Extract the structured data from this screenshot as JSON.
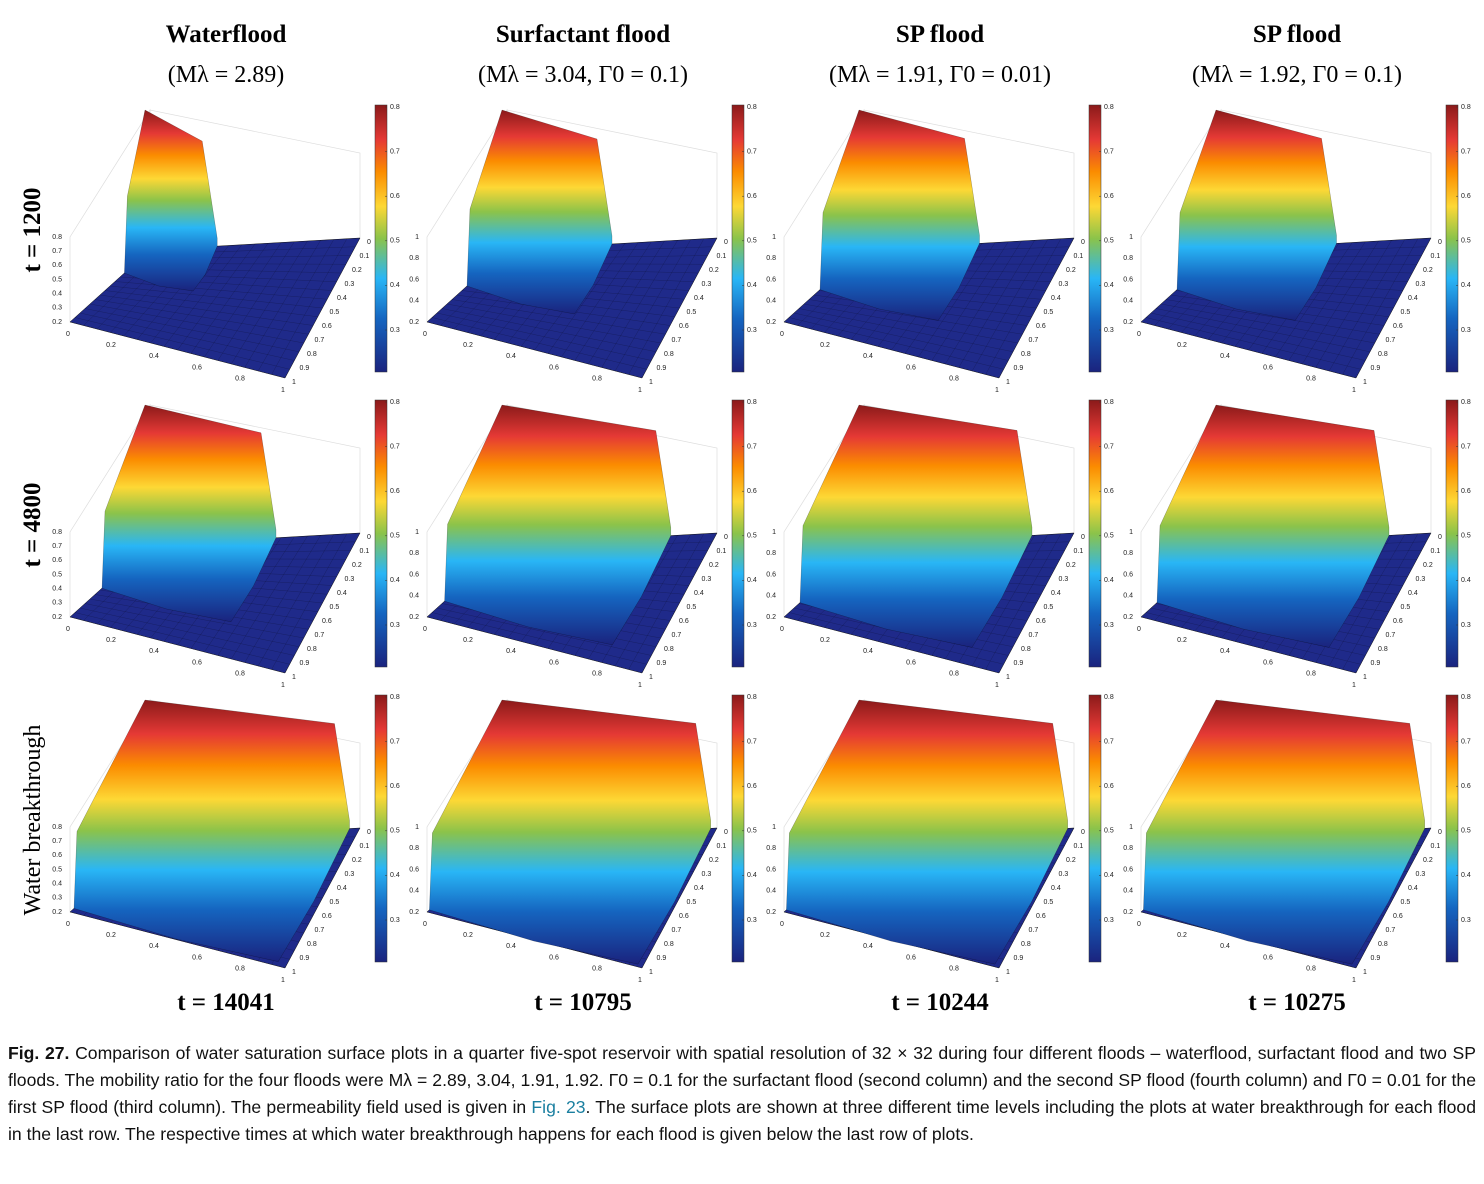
{
  "columns": [
    {
      "title": "Waterflood",
      "subtitle": "(Mλ = 2.89)"
    },
    {
      "title": "Surfactant flood",
      "subtitle": "(Mλ = 3.04, Γ0 = 0.1)"
    },
    {
      "title": "SP flood",
      "subtitle": "(Mλ = 1.91, Γ0 = 0.01)"
    },
    {
      "title": "SP flood",
      "subtitle": "(Mλ = 1.92, Γ0 = 0.1)"
    }
  ],
  "rows": [
    {
      "label": "t = 1200"
    },
    {
      "label": "t = 4800"
    },
    {
      "label": "Water breakthrough"
    }
  ],
  "breakthrough_times": [
    "t = 14041",
    "t = 10795",
    "t = 10244",
    "t = 10275"
  ],
  "axes": {
    "x_ticks": [
      0,
      0.2,
      0.4,
      0.6,
      0.8,
      1
    ],
    "y_ticks": [
      0,
      0.1,
      0.2,
      0.3,
      0.4,
      0.5,
      0.6,
      0.7,
      0.8,
      0.9,
      1
    ],
    "colorbar_ticks": [
      0.3,
      0.4,
      0.5,
      0.6,
      0.7,
      0.8
    ]
  },
  "panels": [
    [
      {
        "z_ticks": [
          0.2,
          0.3,
          0.4,
          0.5,
          0.6,
          0.7,
          0.8
        ]
      },
      {
        "z_ticks": [
          0.2,
          0.4,
          0.6,
          0.8,
          1
        ]
      },
      {
        "z_ticks": [
          0.2,
          0.4,
          0.6,
          0.8,
          1
        ]
      },
      {
        "z_ticks": [
          0.2,
          0.4,
          0.6,
          0.8,
          1
        ]
      }
    ],
    [
      {
        "z_ticks": [
          0.2,
          0.3,
          0.4,
          0.5,
          0.6,
          0.7,
          0.8
        ]
      },
      {
        "z_ticks": [
          0.2,
          0.4,
          0.6,
          0.8,
          1
        ]
      },
      {
        "z_ticks": [
          0.2,
          0.4,
          0.6,
          0.8,
          1
        ]
      },
      {
        "z_ticks": [
          0.2,
          0.4,
          0.6,
          0.8,
          1
        ]
      }
    ],
    [
      {
        "z_ticks": [
          0.2,
          0.3,
          0.4,
          0.5,
          0.6,
          0.7,
          0.8
        ]
      },
      {
        "z_ticks": [
          0.2,
          0.4,
          0.6,
          0.8,
          1
        ]
      },
      {
        "z_ticks": [
          0.2,
          0.4,
          0.6,
          0.8,
          1
        ]
      },
      {
        "z_ticks": [
          0.2,
          0.4,
          0.6,
          0.8,
          1
        ]
      }
    ]
  ],
  "caption": {
    "label": "Fig. 27.",
    "text_before": "Comparison of water saturation surface plots in a quarter five-spot reservoir with spatial resolution of 32 × 32 during four different floods – waterflood, surfactant flood and two SP floods. The mobility ratio for the four floods were Mλ = 2.89, 3.04, 1.91, 1.92. Γ0 = 0.1 for the surfactant flood (second column) and the second SP flood (fourth column) and Γ0 = 0.01 for the first SP flood (third column). The permeability field used is given in",
    "link": "Fig. 23",
    "text_after": ". The surface plots are shown at three different time levels including the plots at water breakthrough for each flood in the last row. The respective times at which water breakthrough happens for each flood is given below the last row of plots."
  }
}
